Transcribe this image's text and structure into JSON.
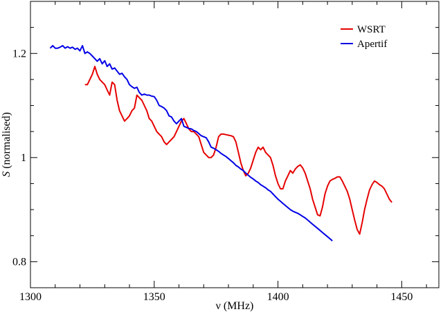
{
  "chart_data": {
    "type": "line",
    "title": "",
    "xlabel": "ν (MHz)",
    "ylabel_italic": "S",
    "ylabel_rest": " (normalised)",
    "xlim": [
      1300,
      1465
    ],
    "ylim": [
      0.75,
      1.3
    ],
    "x_ticks": [
      1300,
      1350,
      1400,
      1450
    ],
    "x_tick_labels": [
      "1300",
      "1350",
      "1400",
      "1450"
    ],
    "y_ticks": [
      0.8,
      1.0,
      1.2
    ],
    "y_tick_labels": [
      "0.8",
      "1",
      "1.2"
    ],
    "grid": false,
    "legend_position": "top-right",
    "series": [
      {
        "name": "WSRT",
        "color": "#e60000",
        "points": [
          [
            1322,
            1.14
          ],
          [
            1323,
            1.14
          ],
          [
            1324,
            1.15
          ],
          [
            1325,
            1.16
          ],
          [
            1326,
            1.175
          ],
          [
            1327,
            1.16
          ],
          [
            1328,
            1.15
          ],
          [
            1329,
            1.145
          ],
          [
            1330,
            1.14
          ],
          [
            1331,
            1.13
          ],
          [
            1332,
            1.12
          ],
          [
            1333,
            1.145
          ],
          [
            1334,
            1.14
          ],
          [
            1335,
            1.11
          ],
          [
            1336,
            1.09
          ],
          [
            1337,
            1.08
          ],
          [
            1338,
            1.07
          ],
          [
            1339,
            1.075
          ],
          [
            1340,
            1.08
          ],
          [
            1341,
            1.09
          ],
          [
            1342,
            1.095
          ],
          [
            1343,
            1.12
          ],
          [
            1344,
            1.115
          ],
          [
            1345,
            1.11
          ],
          [
            1346,
            1.1
          ],
          [
            1347,
            1.09
          ],
          [
            1348,
            1.075
          ],
          [
            1349,
            1.07
          ],
          [
            1350,
            1.06
          ],
          [
            1351,
            1.05
          ],
          [
            1352,
            1.045
          ],
          [
            1353,
            1.04
          ],
          [
            1354,
            1.03
          ],
          [
            1355,
            1.025
          ],
          [
            1356,
            1.03
          ],
          [
            1357,
            1.035
          ],
          [
            1358,
            1.04
          ],
          [
            1359,
            1.05
          ],
          [
            1360,
            1.06
          ],
          [
            1361,
            1.07
          ],
          [
            1362,
            1.075
          ],
          [
            1363,
            1.065
          ],
          [
            1364,
            1.055
          ],
          [
            1365,
            1.05
          ],
          [
            1366,
            1.05
          ],
          [
            1367,
            1.045
          ],
          [
            1368,
            1.04
          ],
          [
            1369,
            1.025
          ],
          [
            1370,
            1.01
          ],
          [
            1371,
            1.005
          ],
          [
            1372,
            1.0
          ],
          [
            1373,
            1.0
          ],
          [
            1374,
            1.005
          ],
          [
            1375,
            1.02
          ],
          [
            1376,
            1.04
          ],
          [
            1377,
            1.045
          ],
          [
            1378,
            1.045
          ],
          [
            1379,
            1.044
          ],
          [
            1380,
            1.043
          ],
          [
            1381,
            1.042
          ],
          [
            1382,
            1.04
          ],
          [
            1383,
            1.03
          ],
          [
            1384,
            1.01
          ],
          [
            1385,
            0.99
          ],
          [
            1386,
            0.975
          ],
          [
            1387,
            0.965
          ],
          [
            1388,
            0.97
          ],
          [
            1389,
            0.98
          ],
          [
            1390,
            0.995
          ],
          [
            1391,
            1.01
          ],
          [
            1392,
            1.02
          ],
          [
            1393,
            1.015
          ],
          [
            1394,
            1.02
          ],
          [
            1395,
            1.01
          ],
          [
            1396,
            1.005
          ],
          [
            1397,
            1.0
          ],
          [
            1398,
            0.985
          ],
          [
            1399,
            0.965
          ],
          [
            1400,
            0.95
          ],
          [
            1401,
            0.94
          ],
          [
            1402,
            0.94
          ],
          [
            1403,
            0.955
          ],
          [
            1404,
            0.965
          ],
          [
            1405,
            0.975
          ],
          [
            1406,
            0.97
          ],
          [
            1407,
            0.978
          ],
          [
            1408,
            0.983
          ],
          [
            1409,
            0.986
          ],
          [
            1410,
            0.98
          ],
          [
            1411,
            0.97
          ],
          [
            1412,
            0.955
          ],
          [
            1413,
            0.94
          ],
          [
            1414,
            0.92
          ],
          [
            1415,
            0.905
          ],
          [
            1416,
            0.89
          ],
          [
            1417,
            0.888
          ],
          [
            1418,
            0.905
          ],
          [
            1419,
            0.93
          ],
          [
            1420,
            0.945
          ],
          [
            1421,
            0.955
          ],
          [
            1422,
            0.958
          ],
          [
            1423,
            0.96
          ],
          [
            1424,
            0.963
          ],
          [
            1425,
            0.963
          ],
          [
            1426,
            0.955
          ],
          [
            1427,
            0.945
          ],
          [
            1428,
            0.935
          ],
          [
            1429,
            0.92
          ],
          [
            1430,
            0.9
          ],
          [
            1431,
            0.88
          ],
          [
            1432,
            0.862
          ],
          [
            1433,
            0.853
          ],
          [
            1434,
            0.875
          ],
          [
            1435,
            0.9
          ],
          [
            1436,
            0.92
          ],
          [
            1437,
            0.938
          ],
          [
            1438,
            0.948
          ],
          [
            1439,
            0.955
          ],
          [
            1440,
            0.952
          ],
          [
            1441,
            0.948
          ],
          [
            1442,
            0.945
          ],
          [
            1443,
            0.94
          ],
          [
            1444,
            0.93
          ],
          [
            1445,
            0.92
          ],
          [
            1446,
            0.914
          ]
        ]
      },
      {
        "name": "Apertif",
        "color": "#0000e6",
        "points": [
          [
            1308,
            1.21
          ],
          [
            1309,
            1.215
          ],
          [
            1310,
            1.21
          ],
          [
            1311,
            1.21
          ],
          [
            1312,
            1.212
          ],
          [
            1313,
            1.215
          ],
          [
            1314,
            1.21
          ],
          [
            1315,
            1.213
          ],
          [
            1316,
            1.21
          ],
          [
            1317,
            1.212
          ],
          [
            1318,
            1.208
          ],
          [
            1319,
            1.21
          ],
          [
            1320,
            1.205
          ],
          [
            1321,
            1.215
          ],
          [
            1322,
            1.2
          ],
          [
            1323,
            1.203
          ],
          [
            1324,
            1.2
          ],
          [
            1325,
            1.195
          ],
          [
            1326,
            1.19
          ],
          [
            1327,
            1.185
          ],
          [
            1328,
            1.19
          ],
          [
            1329,
            1.18
          ],
          [
            1330,
            1.186
          ],
          [
            1331,
            1.175
          ],
          [
            1332,
            1.18
          ],
          [
            1333,
            1.17
          ],
          [
            1334,
            1.172
          ],
          [
            1335,
            1.166
          ],
          [
            1336,
            1.16
          ],
          [
            1337,
            1.162
          ],
          [
            1338,
            1.155
          ],
          [
            1339,
            1.15
          ],
          [
            1340,
            1.14
          ],
          [
            1341,
            1.136
          ],
          [
            1342,
            1.133
          ],
          [
            1343,
            1.135
          ],
          [
            1344,
            1.125
          ],
          [
            1345,
            1.12
          ],
          [
            1346,
            1.122
          ],
          [
            1347,
            1.12
          ],
          [
            1348,
            1.12
          ],
          [
            1349,
            1.118
          ],
          [
            1350,
            1.117
          ],
          [
            1351,
            1.11
          ],
          [
            1352,
            1.1
          ],
          [
            1353,
            1.098
          ],
          [
            1354,
            1.095
          ],
          [
            1355,
            1.09
          ],
          [
            1356,
            1.08
          ],
          [
            1357,
            1.078
          ],
          [
            1358,
            1.07
          ],
          [
            1359,
            1.065
          ],
          [
            1360,
            1.07
          ],
          [
            1361,
            1.075
          ],
          [
            1362,
            1.06
          ],
          [
            1363,
            1.058
          ],
          [
            1364,
            1.056
          ],
          [
            1365,
            1.055
          ],
          [
            1366,
            1.052
          ],
          [
            1367,
            1.05
          ],
          [
            1368,
            1.046
          ],
          [
            1369,
            1.042
          ],
          [
            1370,
            1.04
          ],
          [
            1371,
            1.038
          ],
          [
            1372,
            1.03
          ],
          [
            1373,
            1.02
          ],
          [
            1374,
            1.018
          ],
          [
            1375,
            1.015
          ],
          [
            1376,
            1.012
          ],
          [
            1377,
            1.008
          ],
          [
            1378,
            1.005
          ],
          [
            1379,
            1.002
          ],
          [
            1380,
            0.998
          ],
          [
            1381,
            0.994
          ],
          [
            1382,
            0.99
          ],
          [
            1383,
            0.985
          ],
          [
            1384,
            0.982
          ],
          [
            1385,
            0.978
          ],
          [
            1386,
            0.975
          ],
          [
            1387,
            0.97
          ],
          [
            1388,
            0.966
          ],
          [
            1389,
            0.962
          ],
          [
            1390,
            0.959
          ],
          [
            1391,
            0.955
          ],
          [
            1392,
            0.952
          ],
          [
            1393,
            0.948
          ],
          [
            1394,
            0.945
          ],
          [
            1395,
            0.942
          ],
          [
            1396,
            0.938
          ],
          [
            1397,
            0.935
          ],
          [
            1398,
            0.93
          ],
          [
            1399,
            0.925
          ],
          [
            1400,
            0.92
          ],
          [
            1401,
            0.916
          ],
          [
            1402,
            0.912
          ],
          [
            1403,
            0.908
          ],
          [
            1404,
            0.904
          ],
          [
            1405,
            0.9
          ],
          [
            1406,
            0.897
          ],
          [
            1407,
            0.895
          ],
          [
            1408,
            0.893
          ],
          [
            1409,
            0.89
          ],
          [
            1410,
            0.887
          ],
          [
            1411,
            0.884
          ],
          [
            1412,
            0.88
          ],
          [
            1413,
            0.876
          ],
          [
            1414,
            0.872
          ],
          [
            1415,
            0.868
          ],
          [
            1416,
            0.864
          ],
          [
            1417,
            0.86
          ],
          [
            1418,
            0.856
          ],
          [
            1419,
            0.852
          ],
          [
            1420,
            0.848
          ],
          [
            1421,
            0.844
          ],
          [
            1422,
            0.84
          ]
        ]
      }
    ]
  }
}
